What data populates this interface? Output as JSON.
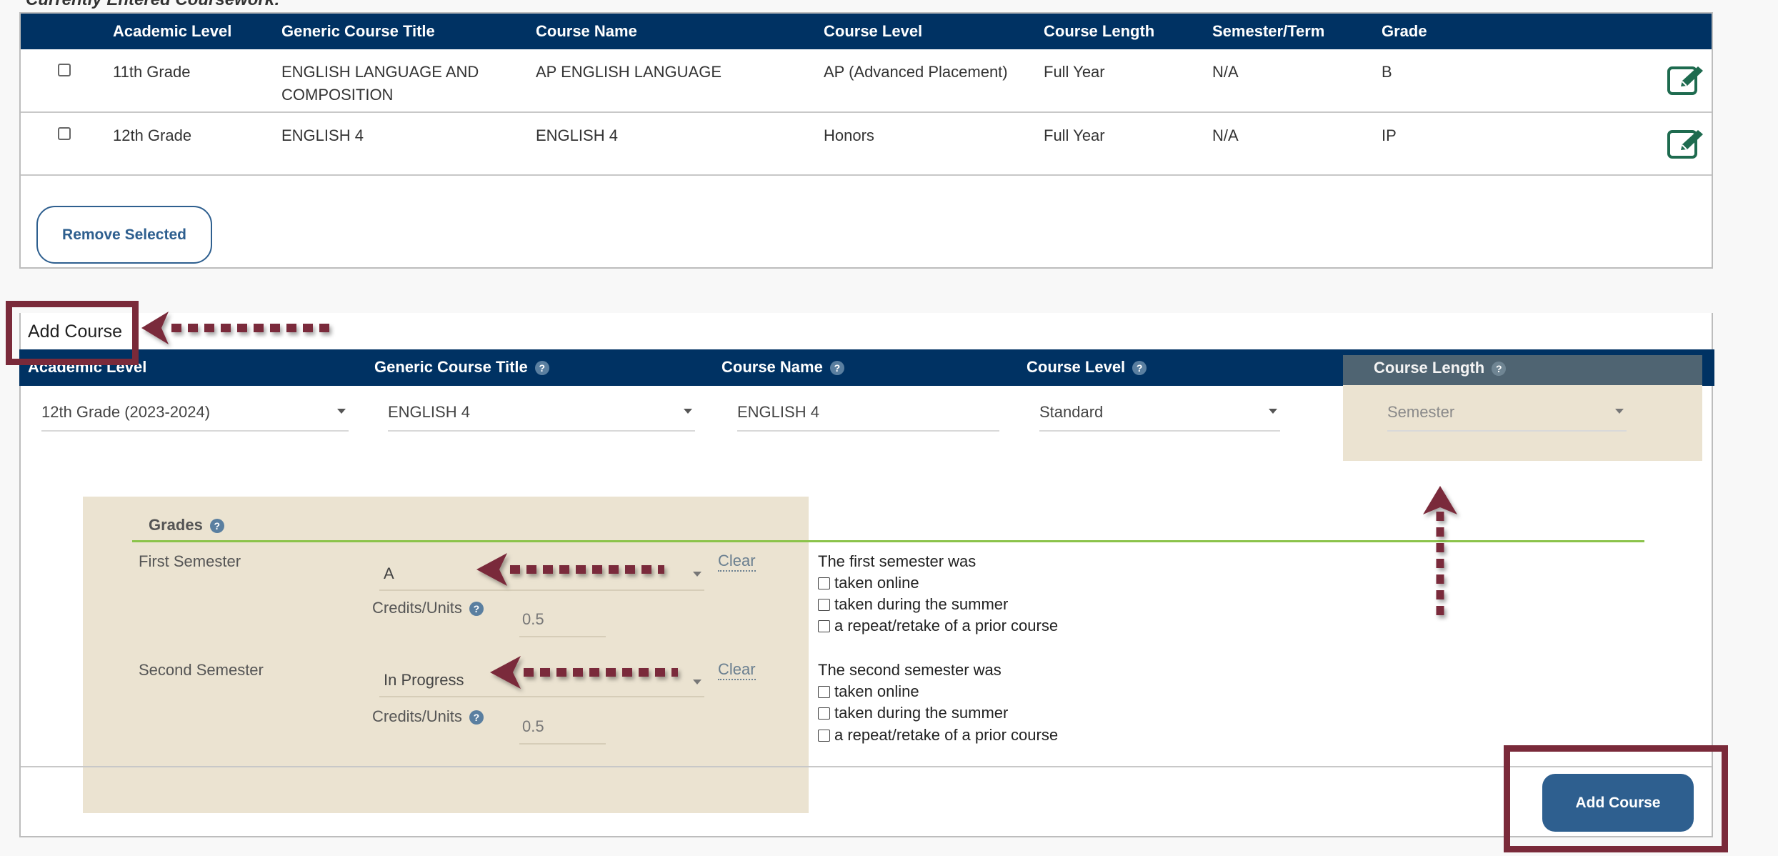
{
  "page": {
    "caption": "Currently Entered Coursework:"
  },
  "coursework_table": {
    "columns": [
      "Academic Level",
      "Generic Course Title",
      "Course Name",
      "Course Level",
      "Course Length",
      "Semester/Term",
      "Grade"
    ],
    "rows": [
      {
        "academic_level": "11th Grade",
        "generic_title": "ENGLISH LANGUAGE AND COMPOSITION",
        "course_name": "AP ENGLISH LANGUAGE",
        "course_level": "AP (Advanced Placement)",
        "course_length": "Full Year",
        "term": "N/A",
        "grade": "B"
      },
      {
        "academic_level": "12th Grade",
        "generic_title": "ENGLISH 4",
        "course_name": "ENGLISH 4",
        "course_level": "Honors",
        "course_length": "Full Year",
        "term": "N/A",
        "grade": "IP"
      }
    ],
    "remove_label": "Remove Selected"
  },
  "add_course": {
    "title": "Add Course",
    "columns": [
      "Academic Level",
      "Generic Course Title",
      "Course Name",
      "Course Level",
      "Course Length"
    ],
    "fields": {
      "academic_level": "12th Grade (2023-2024)",
      "generic_title": "ENGLISH 4",
      "course_name": "ENGLISH 4",
      "course_level": "Standard",
      "course_length": "Semester"
    },
    "grades": {
      "title": "Grades",
      "first": {
        "label": "First Semester",
        "grade": "A",
        "clear": "Clear",
        "credits_label": "Credits/Units",
        "credits": "0.5",
        "intro": "The first semester was",
        "options": [
          "taken online",
          "taken during the summer",
          "a repeat/retake of a prior course"
        ]
      },
      "second": {
        "label": "Second Semester",
        "grade": "In Progress",
        "clear": "Clear",
        "credits_label": "Credits/Units",
        "credits": "0.5",
        "intro": "The second semester was",
        "options": [
          "taken online",
          "taken during the summer",
          "a repeat/retake of a prior course"
        ]
      }
    },
    "submit_label": "Add Course"
  },
  "colors": {
    "header": "#003263",
    "accent": "#2e5f8f",
    "annotation": "#7a2a3a",
    "highlight": "#ebe3d1",
    "edit_icon": "#1e6b4f",
    "divider": "#8bc34a"
  }
}
